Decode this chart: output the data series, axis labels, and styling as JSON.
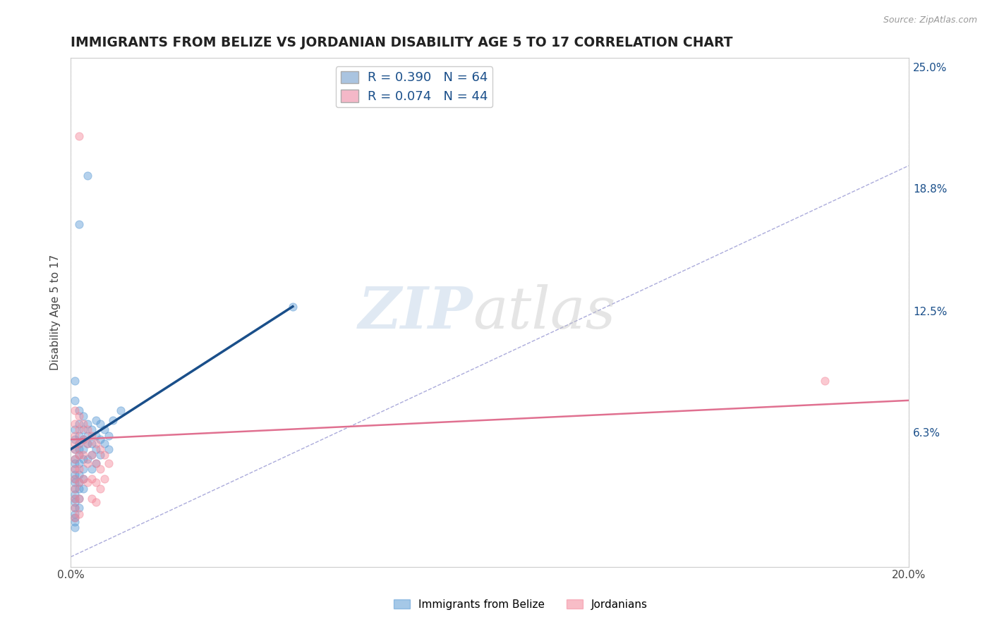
{
  "title": "IMMIGRANTS FROM BELIZE VS JORDANIAN DISABILITY AGE 5 TO 17 CORRELATION CHART",
  "source": "Source: ZipAtlas.com",
  "ylabel": "Disability Age 5 to 17",
  "xlim": [
    0.0,
    0.2
  ],
  "ylim": [
    -0.005,
    0.255
  ],
  "ytick_labels": [
    "6.3%",
    "12.5%",
    "18.8%",
    "25.0%"
  ],
  "ytick_vals": [
    0.063,
    0.125,
    0.188,
    0.25
  ],
  "grid_color": "#cccccc",
  "background_color": "#ffffff",
  "legend_entries": [
    {
      "label": "R = 0.390   N = 64",
      "color": "#aac4e0"
    },
    {
      "label": "R = 0.074   N = 44",
      "color": "#f4b8c8"
    }
  ],
  "legend_labels": [
    "Immigrants from Belize",
    "Jordanians"
  ],
  "blue_color": "#5b9bd5",
  "pink_color": "#f4889a",
  "blue_line_color": "#1a4f8a",
  "pink_line_color": "#e07090",
  "diag_color": "#8888cc",
  "blue_line_x": [
    0.0,
    0.053
  ],
  "blue_line_y": [
    0.055,
    0.128
  ],
  "pink_line_x": [
    0.0,
    0.2
  ],
  "pink_line_y": [
    0.06,
    0.08
  ],
  "blue_scatter": [
    [
      0.001,
      0.09
    ],
    [
      0.001,
      0.08
    ],
    [
      0.001,
      0.065
    ],
    [
      0.001,
      0.06
    ],
    [
      0.001,
      0.055
    ],
    [
      0.001,
      0.05
    ],
    [
      0.001,
      0.048
    ],
    [
      0.001,
      0.045
    ],
    [
      0.001,
      0.042
    ],
    [
      0.001,
      0.04
    ],
    [
      0.001,
      0.038
    ],
    [
      0.001,
      0.035
    ],
    [
      0.001,
      0.032
    ],
    [
      0.001,
      0.03
    ],
    [
      0.001,
      0.028
    ],
    [
      0.001,
      0.025
    ],
    [
      0.001,
      0.022
    ],
    [
      0.001,
      0.02
    ],
    [
      0.001,
      0.018
    ],
    [
      0.001,
      0.015
    ],
    [
      0.002,
      0.075
    ],
    [
      0.002,
      0.068
    ],
    [
      0.002,
      0.062
    ],
    [
      0.002,
      0.058
    ],
    [
      0.002,
      0.055
    ],
    [
      0.002,
      0.052
    ],
    [
      0.002,
      0.048
    ],
    [
      0.002,
      0.042
    ],
    [
      0.002,
      0.038
    ],
    [
      0.002,
      0.035
    ],
    [
      0.002,
      0.03
    ],
    [
      0.002,
      0.025
    ],
    [
      0.003,
      0.072
    ],
    [
      0.003,
      0.065
    ],
    [
      0.003,
      0.06
    ],
    [
      0.003,
      0.055
    ],
    [
      0.003,
      0.05
    ],
    [
      0.003,
      0.045
    ],
    [
      0.003,
      0.04
    ],
    [
      0.003,
      0.035
    ],
    [
      0.004,
      0.068
    ],
    [
      0.004,
      0.062
    ],
    [
      0.004,
      0.058
    ],
    [
      0.004,
      0.05
    ],
    [
      0.005,
      0.065
    ],
    [
      0.005,
      0.058
    ],
    [
      0.005,
      0.052
    ],
    [
      0.005,
      0.045
    ],
    [
      0.006,
      0.07
    ],
    [
      0.006,
      0.062
    ],
    [
      0.006,
      0.055
    ],
    [
      0.006,
      0.048
    ],
    [
      0.007,
      0.068
    ],
    [
      0.007,
      0.06
    ],
    [
      0.007,
      0.052
    ],
    [
      0.008,
      0.065
    ],
    [
      0.008,
      0.058
    ],
    [
      0.009,
      0.062
    ],
    [
      0.009,
      0.055
    ],
    [
      0.01,
      0.07
    ],
    [
      0.012,
      0.075
    ],
    [
      0.002,
      0.17
    ],
    [
      0.004,
      0.195
    ],
    [
      0.053,
      0.128
    ]
  ],
  "pink_scatter": [
    [
      0.001,
      0.075
    ],
    [
      0.001,
      0.068
    ],
    [
      0.001,
      0.062
    ],
    [
      0.001,
      0.058
    ],
    [
      0.001,
      0.055
    ],
    [
      0.001,
      0.05
    ],
    [
      0.001,
      0.045
    ],
    [
      0.001,
      0.04
    ],
    [
      0.001,
      0.035
    ],
    [
      0.001,
      0.03
    ],
    [
      0.001,
      0.025
    ],
    [
      0.001,
      0.02
    ],
    [
      0.002,
      0.072
    ],
    [
      0.002,
      0.065
    ],
    [
      0.002,
      0.058
    ],
    [
      0.002,
      0.052
    ],
    [
      0.002,
      0.045
    ],
    [
      0.002,
      0.038
    ],
    [
      0.002,
      0.03
    ],
    [
      0.002,
      0.022
    ],
    [
      0.003,
      0.068
    ],
    [
      0.003,
      0.06
    ],
    [
      0.003,
      0.052
    ],
    [
      0.003,
      0.04
    ],
    [
      0.004,
      0.065
    ],
    [
      0.004,
      0.058
    ],
    [
      0.004,
      0.048
    ],
    [
      0.004,
      0.038
    ],
    [
      0.005,
      0.062
    ],
    [
      0.005,
      0.052
    ],
    [
      0.005,
      0.04
    ],
    [
      0.005,
      0.03
    ],
    [
      0.006,
      0.058
    ],
    [
      0.006,
      0.048
    ],
    [
      0.006,
      0.038
    ],
    [
      0.006,
      0.028
    ],
    [
      0.007,
      0.055
    ],
    [
      0.007,
      0.045
    ],
    [
      0.007,
      0.035
    ],
    [
      0.008,
      0.052
    ],
    [
      0.008,
      0.04
    ],
    [
      0.009,
      0.048
    ],
    [
      0.002,
      0.215
    ],
    [
      0.18,
      0.09
    ]
  ]
}
